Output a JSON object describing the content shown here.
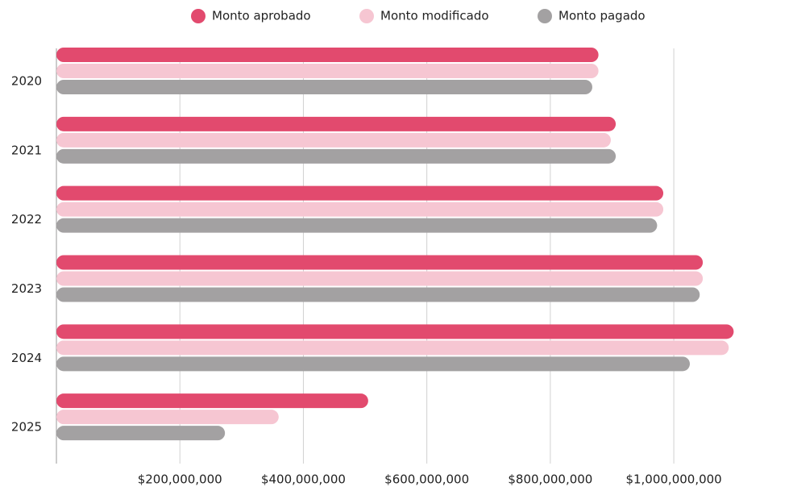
{
  "chart_data": {
    "type": "barh",
    "categories": [
      "2020",
      "2021",
      "2022",
      "2023",
      "2024",
      "2025"
    ],
    "series": [
      {
        "name": "Monto aprobado",
        "color": "#e24a6e",
        "values": [
          878000000,
          906000000,
          983000000,
          1047000000,
          1097000000,
          505000000
        ]
      },
      {
        "name": "Monto modificado",
        "color": "#f6c6d2",
        "values": [
          878000000,
          898000000,
          983000000,
          1047000000,
          1089000000,
          360000000
        ]
      },
      {
        "name": "Monto pagado",
        "color": "#a3a1a2",
        "values": [
          868000000,
          906000000,
          973000000,
          1042000000,
          1026000000,
          273000000
        ]
      }
    ],
    "xlim": [
      0,
      1150000000
    ],
    "xticks": [
      {
        "value": 200000000,
        "label": "$200,000,000"
      },
      {
        "value": 400000000,
        "label": "$400,000,000"
      },
      {
        "value": 600000000,
        "label": "$600,000,000"
      },
      {
        "value": 800000000,
        "label": "$800,000,000"
      },
      {
        "value": 1000000000,
        "label": "$1,000,000,000"
      }
    ],
    "grid": true
  }
}
